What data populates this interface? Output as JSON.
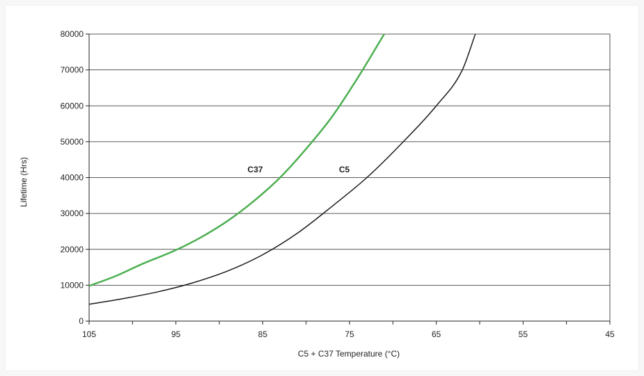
{
  "chart_data": {
    "type": "line",
    "xlabel": "C5 + C37 Temperature (°C)",
    "ylabel": "Lifetime (Hrs)",
    "xlim": [
      105,
      45
    ],
    "ylim": [
      0,
      80000
    ],
    "x_ticks": [
      105,
      95,
      85,
      75,
      65,
      55,
      45
    ],
    "y_ticks": [
      0,
      10000,
      20000,
      30000,
      40000,
      50000,
      60000,
      70000,
      80000
    ],
    "grid": "horizontal",
    "legend": "inline labels",
    "series": [
      {
        "name": "C37",
        "color": "#4caf50",
        "points": [
          [
            105,
            9800
          ],
          [
            102,
            12500
          ],
          [
            99,
            15800
          ],
          [
            95,
            19800
          ],
          [
            92,
            23500
          ],
          [
            89,
            28000
          ],
          [
            86,
            33500
          ],
          [
            83,
            40000
          ],
          [
            80,
            48000
          ],
          [
            77,
            57000
          ],
          [
            74,
            68000
          ],
          [
            71,
            80000
          ]
        ]
      },
      {
        "name": "C5",
        "color": "#1a1a1a",
        "points": [
          [
            105,
            4700
          ],
          [
            101,
            6300
          ],
          [
            97,
            8200
          ],
          [
            93,
            10700
          ],
          [
            89,
            14000
          ],
          [
            85,
            18500
          ],
          [
            81,
            24500
          ],
          [
            77,
            32000
          ],
          [
            73,
            40000
          ],
          [
            69,
            49500
          ],
          [
            65,
            60000
          ],
          [
            62,
            70000
          ],
          [
            60.5,
            80000
          ]
        ]
      }
    ]
  }
}
